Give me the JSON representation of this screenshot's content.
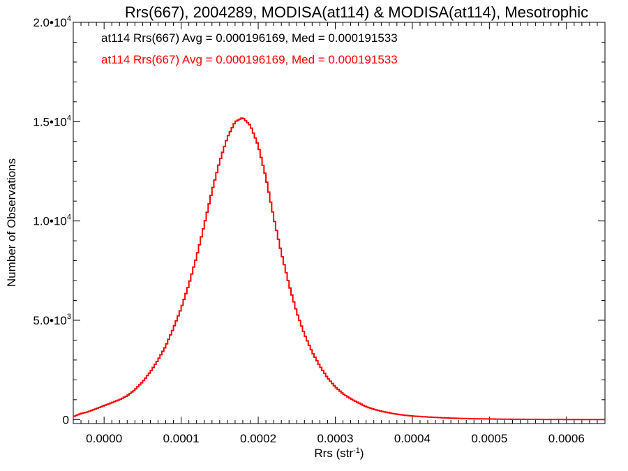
{
  "chart_data": {
    "type": "line",
    "title": "Rrs(667), 2004289, MODISA(at114) & MODISA(at114), Mesotrophic",
    "xlabel": "Rrs (str",
    "xlabel_sup": "-1",
    "xlabel_end": ")",
    "ylabel": "Number of Observations",
    "xlim": [
      -4e-05,
      0.00065
    ],
    "ylim": [
      -200,
      20000
    ],
    "x_tick_values": [
      0.0,
      0.0001,
      0.0002,
      0.0003,
      0.0004,
      0.0005,
      0.0006
    ],
    "x_tick_labels": [
      "0.0000",
      "0.0001",
      "0.0002",
      "0.0003",
      "0.0004",
      "0.0005",
      "0.0006"
    ],
    "y_ticks": [
      {
        "value": 0,
        "label": "0",
        "exp": ""
      },
      {
        "value": 5000,
        "label": "5.0•10",
        "exp": "3"
      },
      {
        "value": 10000,
        "label": "1.0•10",
        "exp": "4"
      },
      {
        "value": 15000,
        "label": "1.5•10",
        "exp": "4"
      },
      {
        "value": 20000,
        "label": "2.0•10",
        "exp": "4"
      }
    ],
    "annotations": [
      {
        "text": "at114 Rrs(667) Avg = 0.000196169, Med = 0.000191533",
        "color": "#000000"
      },
      {
        "text": "at114 Rrs(667) Avg = 0.000196169, Med = 0.000191533",
        "color": "#ff0000"
      }
    ],
    "series": [
      {
        "color": "#ff0000",
        "x": [
          -4e-05,
          -3e-05,
          -2e-05,
          -1e-05,
          0.0,
          1e-05,
          2e-05,
          3e-05,
          4e-05,
          5e-05,
          6e-05,
          7e-05,
          8e-05,
          9e-05,
          0.0001,
          0.00011,
          0.00012,
          0.00013,
          0.00014,
          0.00015,
          0.00016,
          0.00017,
          0.00018,
          0.00019,
          0.0002,
          0.00021,
          0.00022,
          0.00023,
          0.00024,
          0.00025,
          0.00026,
          0.00027,
          0.00028,
          0.00029,
          0.0003,
          0.00031,
          0.00032,
          0.00033,
          0.00034,
          0.00035,
          0.00036,
          0.00037,
          0.00038,
          0.00039,
          0.0004,
          0.00042,
          0.00044,
          0.00046,
          0.00048,
          0.0005,
          0.00053,
          0.00056,
          0.0006,
          0.00065
        ],
        "y": [
          150,
          300,
          400,
          550,
          700,
          850,
          1000,
          1200,
          1500,
          1900,
          2400,
          3000,
          3700,
          4600,
          5600,
          6800,
          8200,
          9800,
          11500,
          13000,
          14200,
          15000,
          15200,
          14800,
          13800,
          12200,
          10200,
          8400,
          6800,
          5400,
          4300,
          3400,
          2700,
          2100,
          1650,
          1300,
          1050,
          850,
          650,
          520,
          420,
          340,
          270,
          220,
          180,
          130,
          90,
          60,
          40,
          30,
          15,
          10,
          5,
          0
        ]
      }
    ]
  }
}
